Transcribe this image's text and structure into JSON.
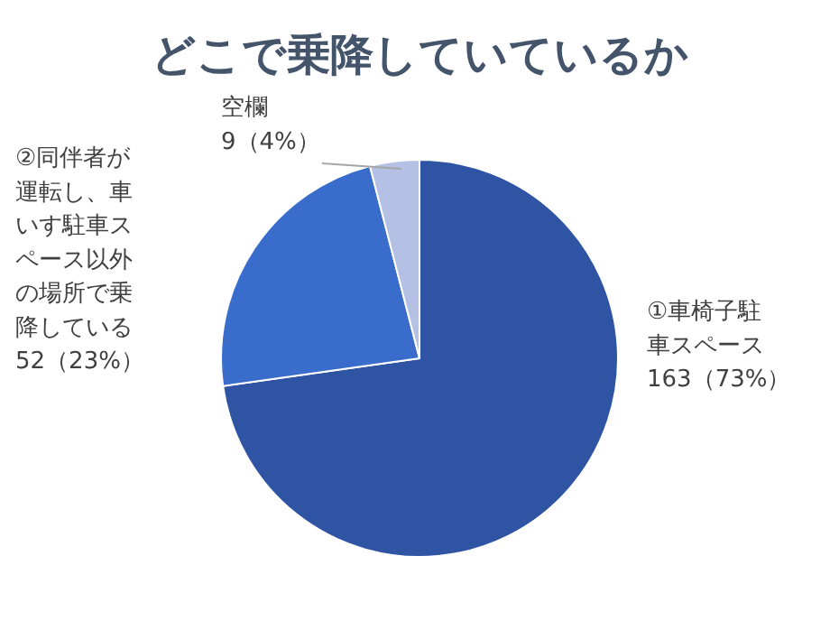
{
  "chart_data": {
    "type": "pie",
    "title": "どこで乗降していているか",
    "categories": [
      "①車椅子駐車スペース",
      "②同伴者が運転し、車いす駐車スペース以外の場所で乗降している",
      "空欄"
    ],
    "values": [
      163,
      52,
      9
    ],
    "colors": [
      "#2f54a3",
      "#3a6ccc",
      "#b4c0e4"
    ],
    "value_labels": [
      "163（73%）",
      "52（23%）",
      "9（4%）"
    ]
  }
}
